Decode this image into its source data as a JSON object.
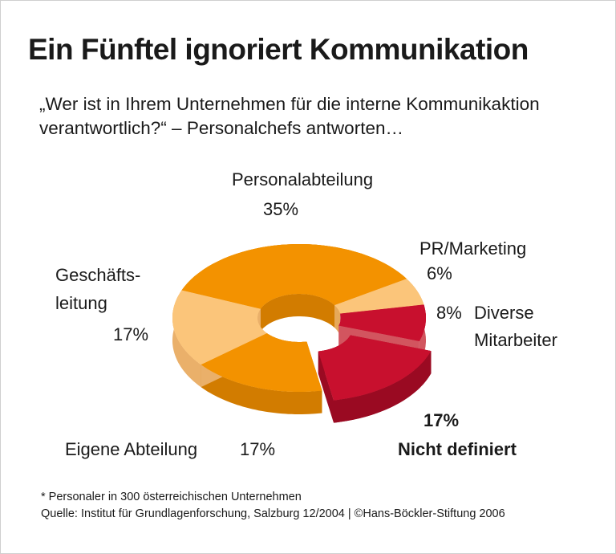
{
  "chart_data": {
    "type": "pie",
    "style": "3d-donut",
    "title": "Ein Fünftel ignoriert Kommunikation",
    "subtitle": "„Wer ist in Ihrem Unternehmen für die interne Kommunikaktion verantwortlich?“ – Personalchefs antworten…",
    "slices": [
      {
        "label": "Personalabteilung",
        "value": 35,
        "value_label": "35%",
        "color": "#f39200",
        "side": "#d27c00",
        "exploded": false
      },
      {
        "label": "PR/Marketing",
        "value": 6,
        "value_label": "6%",
        "color": "#fbc57a",
        "side": "#e6a95a",
        "exploded": false
      },
      {
        "label": "Diverse Mitarbeiter",
        "value": 8,
        "value_label": "8%",
        "color": "#c8102e",
        "side": "#d2555f",
        "exploded": false
      },
      {
        "label": "Nicht definiert",
        "value": 17,
        "value_label": "17%",
        "color": "#c8102e",
        "side": "#9a0a22",
        "exploded": true
      },
      {
        "label": "Eigene Abteilung",
        "value": 17,
        "value_label": "17%",
        "color": "#f39200",
        "side": "#d27c00",
        "exploded": false
      },
      {
        "label": "Geschäftsleitung",
        "value": 17,
        "value_label": "17%",
        "color": "#fbc57a",
        "side": "#eab06a",
        "exploded": false
      }
    ],
    "labels": {
      "personal": "Personalabteilung",
      "personal_val": "35%",
      "pr": "PR/Marketing",
      "pr_val": "6%",
      "diverse_val": "8%",
      "diverse_1": "Diverse",
      "diverse_2": "Mitarbeiter",
      "gf_1": "Geschäfts-",
      "gf_2": "leitung",
      "gf_val": "17%",
      "eigene": "Eigene Abteilung",
      "eigene_val": "17%",
      "nd_val": "17%",
      "nd": "Nicht definiert"
    }
  },
  "footer": {
    "note": "* Personaler in 300 österreichischen Unternehmen",
    "source": "Quelle: Institut für Grundlagenforschung, Salzburg 12/2004 | ©Hans-Böckler-Stiftung 2006"
  }
}
